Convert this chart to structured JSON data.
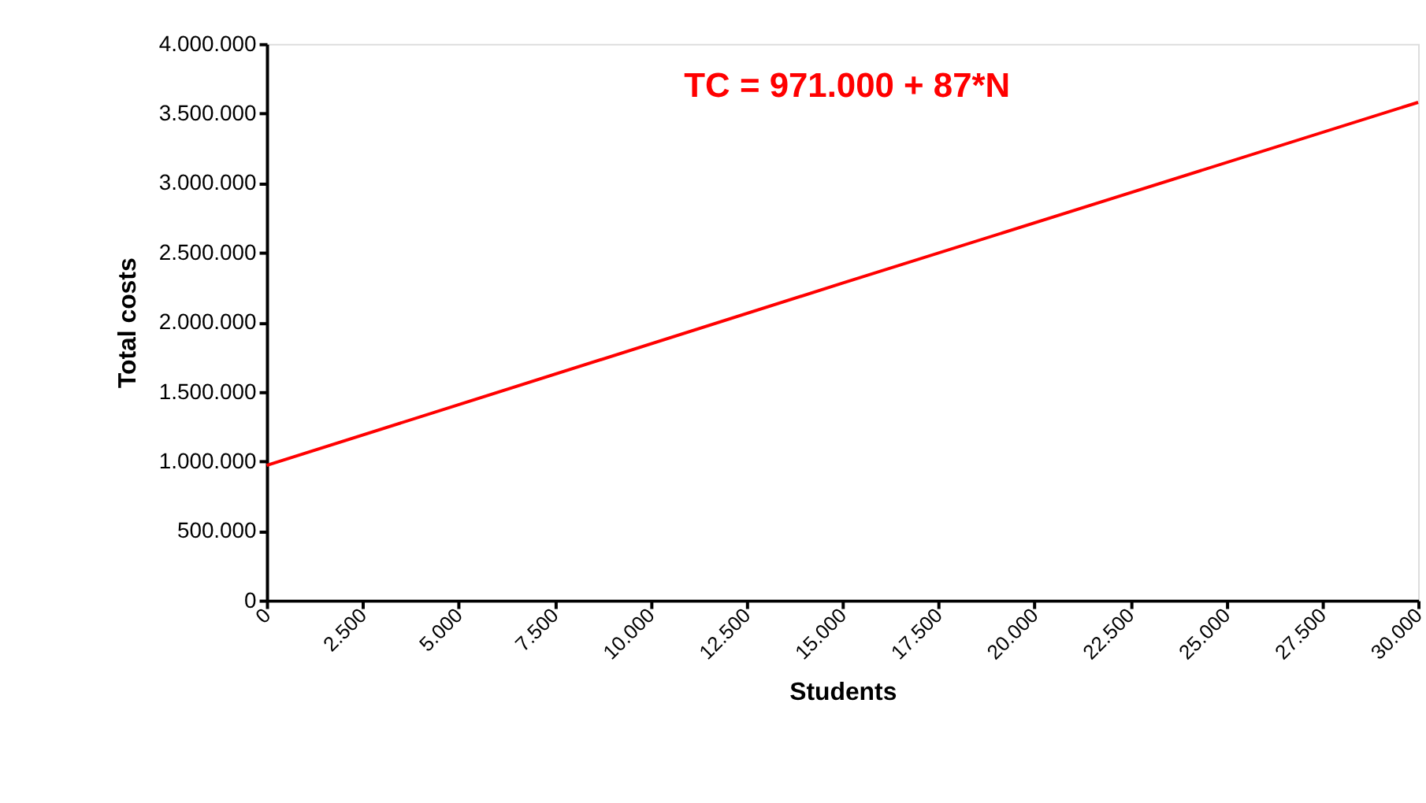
{
  "chart_data": {
    "type": "line",
    "xlabel": "Students",
    "ylabel": "Total costs",
    "annotations": [
      "TC = 971.000 + 87*N"
    ],
    "x": [
      0,
      15000,
      30000
    ],
    "series": [
      {
        "color": "#ff0000",
        "values": [
          970000,
          2280000,
          3580000
        ]
      }
    ],
    "xlim": [
      0,
      30000
    ],
    "ylim": [
      0,
      4000000
    ],
    "xticks": [
      0,
      {
        "value": 2500,
        "label": "2.500"
      },
      {
        "value": 5000,
        "label": "5.000"
      },
      {
        "value": 7500,
        "label": "7.500"
      },
      {
        "value": 10000,
        "label": "10.000"
      },
      {
        "value": 12500,
        "label": "12.500"
      },
      {
        "value": 15000,
        "label": "15.000"
      },
      {
        "value": 17500,
        "label": "17.500"
      },
      {
        "value": 20000,
        "label": "20.000"
      },
      {
        "value": 22500,
        "label": "22.500"
      },
      {
        "value": 25000,
        "label": "25.000"
      },
      {
        "value": 27500,
        "label": "27.500"
      },
      {
        "value": 30000,
        "label": "30.000"
      }
    ],
    "yticks": [
      0,
      {
        "value": 500000,
        "label": "500.000"
      },
      {
        "value": 1000000,
        "label": "1.000.000"
      },
      {
        "value": 1500000,
        "label": "1.500.000"
      },
      {
        "value": 2000000,
        "label": "2.000.000"
      },
      {
        "value": 2500000,
        "label": "2.500.000"
      },
      {
        "value": 3000000,
        "label": "3.000.000"
      },
      {
        "value": 3500000,
        "label": "3.500.000"
      },
      {
        "value": 4000000,
        "label": "4.000.000"
      }
    ],
    "grid": false,
    "marker": "none",
    "line_style": "solid"
  }
}
